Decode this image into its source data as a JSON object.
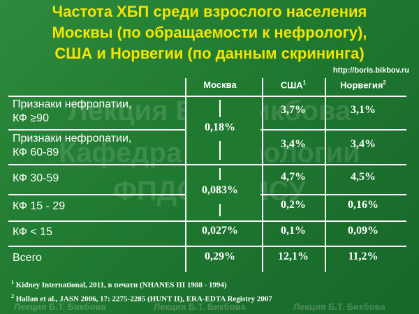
{
  "title": [
    "Частота ХБП среди взрослого населения",
    "Москвы (по обращаемости к нефрологу),",
    "США и Норвегии (по данным скрининга)"
  ],
  "url": "http://boris.bikbov.ru",
  "watermarks": [
    "Лекция Б.Т. Бикбова",
    "Кафедра нефрологии",
    "ФПДО МГМСУ"
  ],
  "footer_watermarks": [
    "Лекция Б.Т. Бикбова",
    "Лекция Б.Т. Бикбова",
    "Лекция Б.Т. Бикбова"
  ],
  "table": {
    "columns": [
      {
        "label": "Москва"
      },
      {
        "label": "США",
        "note": "1"
      },
      {
        "label": "Норвегия",
        "note": "2"
      }
    ],
    "rows": [
      {
        "label": [
          "Признаки нефропатии,",
          "КФ ≥90"
        ],
        "moscow": "0,18%",
        "cells": [
          "3,7%",
          "3,1%"
        ]
      },
      {
        "label": [
          "Признаки нефропатии,",
          "КФ 60-89"
        ],
        "cells": [
          "3,4%",
          "3,4%"
        ]
      },
      {
        "label": [
          "КФ 30-59"
        ],
        "moscow": "0,083%",
        "cells": [
          "4,7%",
          "4,5%"
        ]
      },
      {
        "label": [
          "КФ 15 - 29"
        ],
        "cells": [
          "0,2%",
          "0,16%"
        ]
      },
      {
        "label": [
          "КФ < 15"
        ],
        "moscow": "0,027%",
        "cells": [
          "0,1%",
          "0,09%"
        ]
      },
      {
        "label": [
          "Всего"
        ],
        "moscow": "0,29%",
        "cells": [
          "12,1%",
          "11,2%"
        ]
      }
    ]
  },
  "footnotes": [
    {
      "mark": "1",
      "text": "Kidney International, 2011, в печати (NHANES III 1988 - 1994)"
    },
    {
      "mark": "2",
      "text": "Hallan et al., JASN 2006, 17: 2275-2285 (HUNT II), ERA-EDTA Registry 2007"
    }
  ]
}
